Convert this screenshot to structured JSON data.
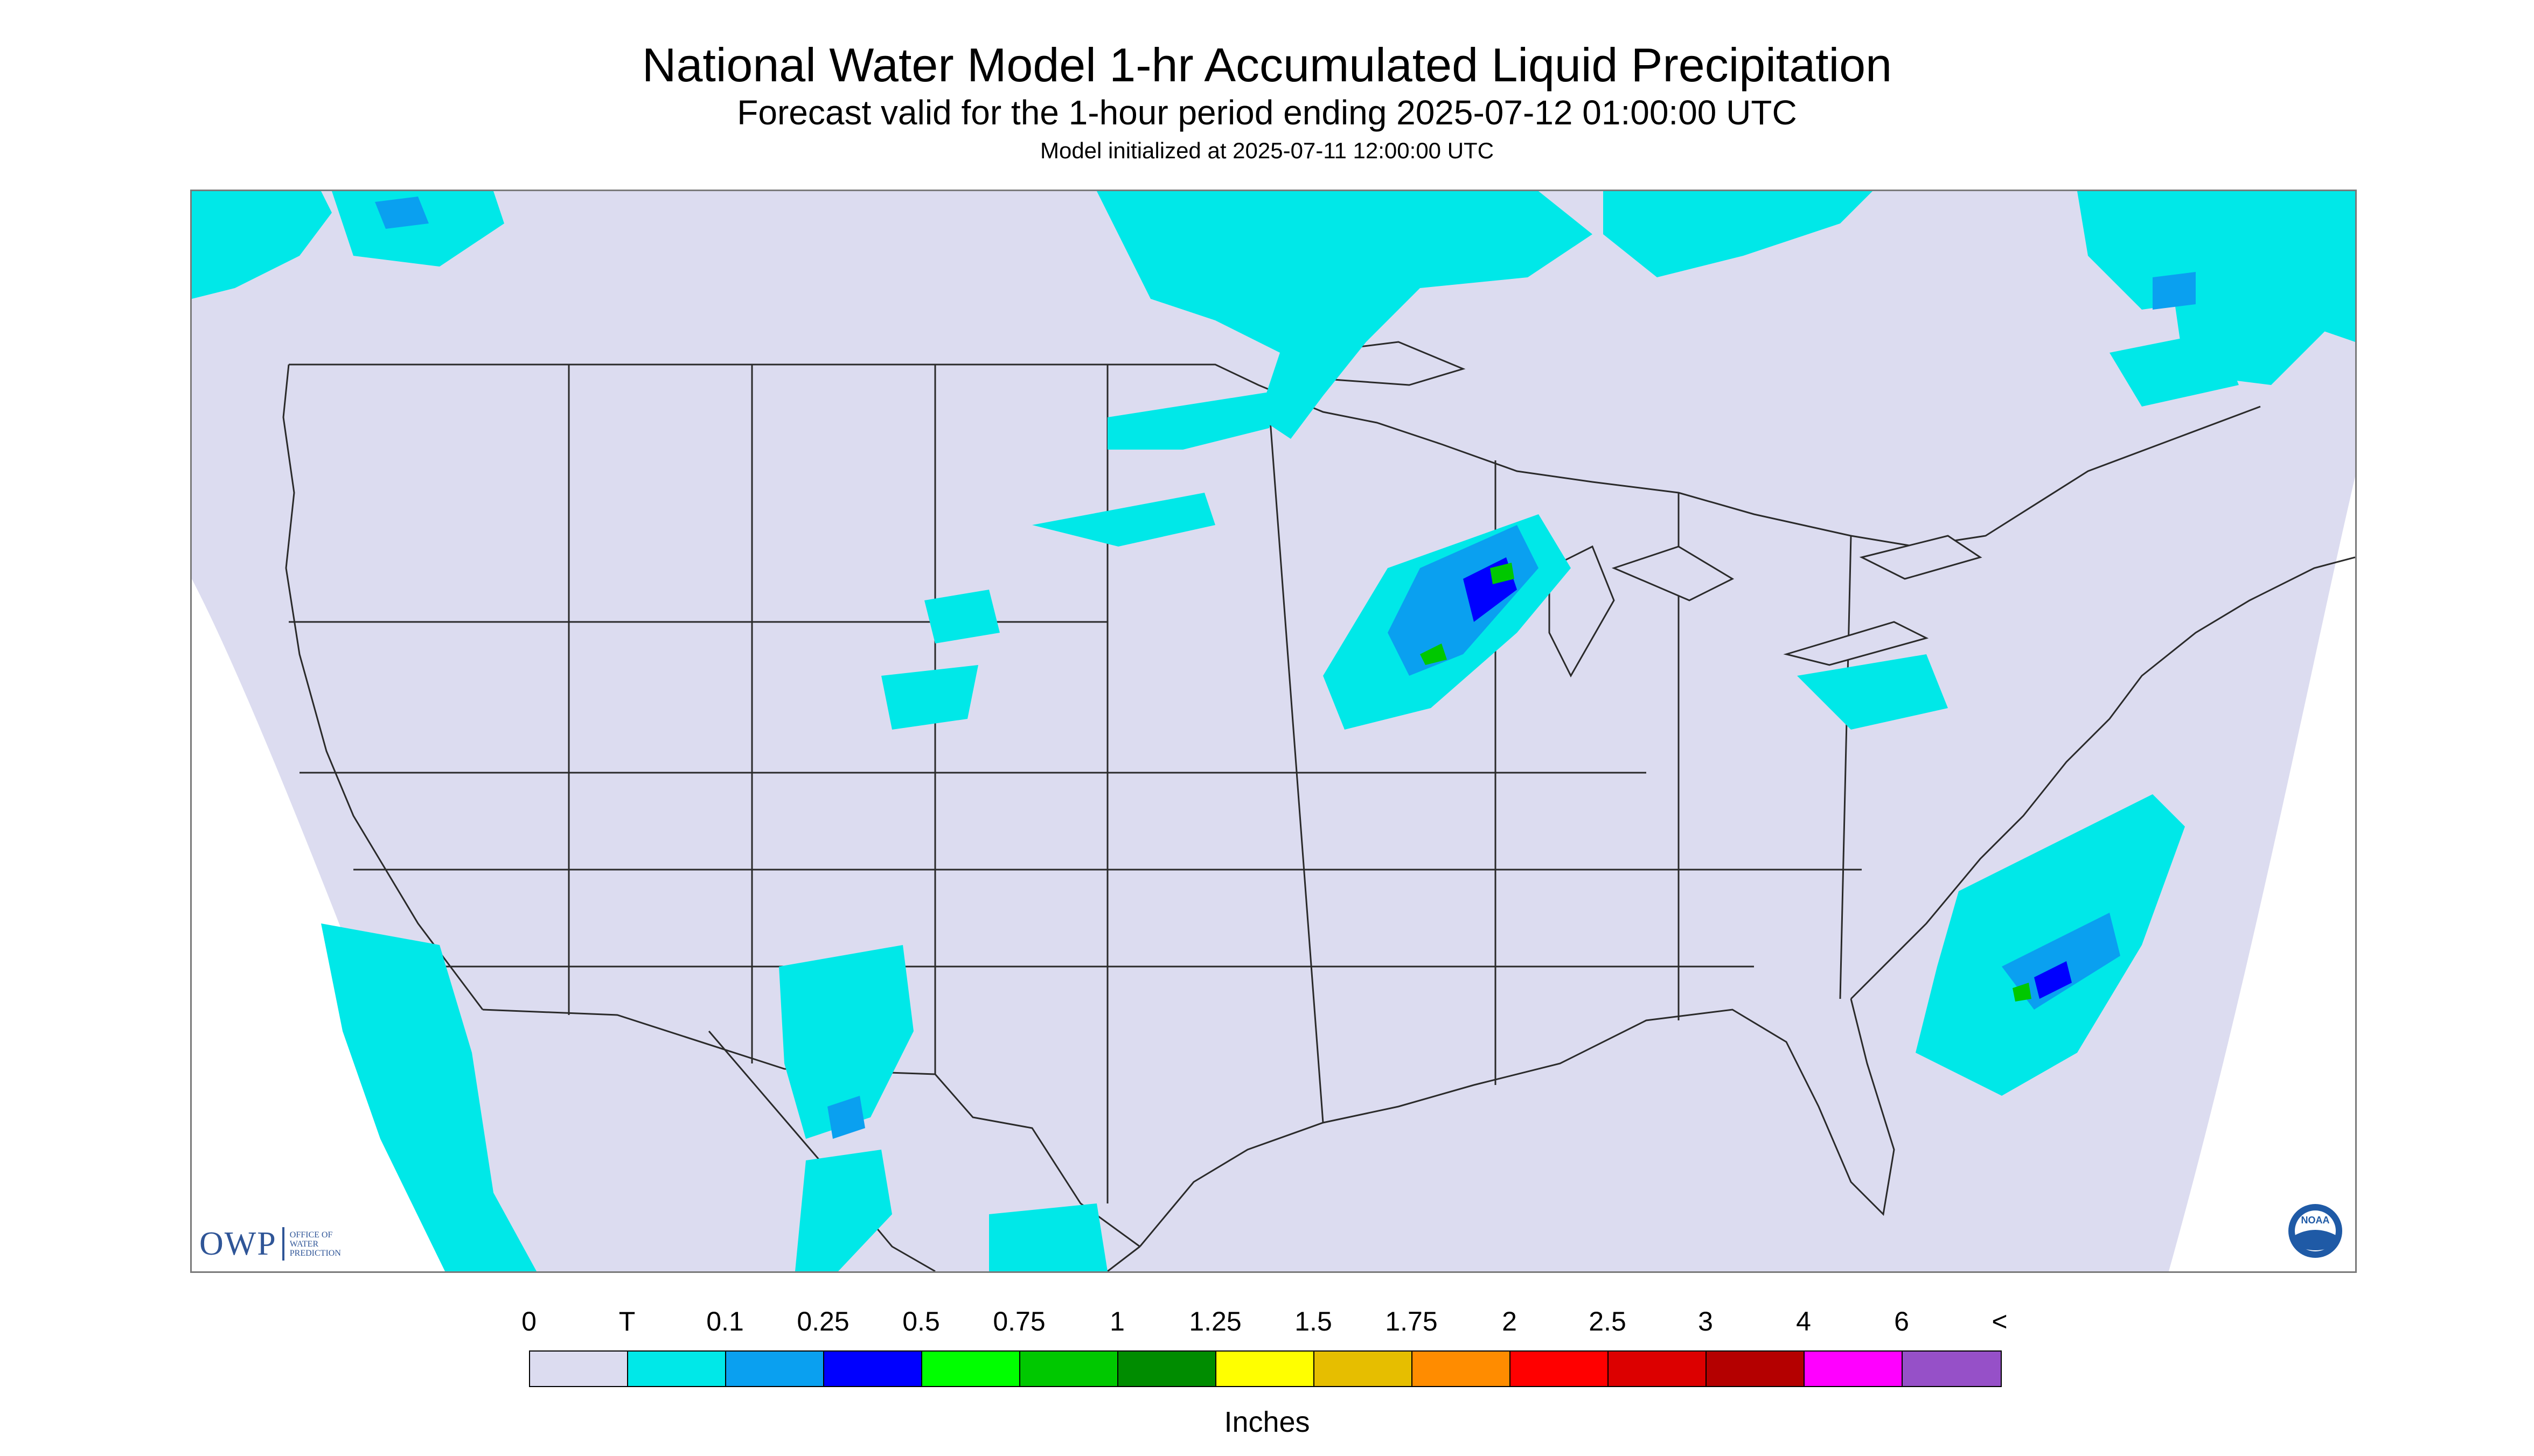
{
  "title": "National Water Model 1-hr Accumulated Liquid Precipitation",
  "subtitle": "Forecast valid for the 1-hour period ending 2025-07-12 01:00:00 UTC",
  "init_line": "Model initialized at 2025-07-11 12:00:00 UTC",
  "logos": {
    "owp_text": "OWP",
    "owp_sub": [
      "OFFICE OF",
      "WATER",
      "PREDICTION"
    ],
    "noaa_text": "NOAA"
  },
  "legend": {
    "units": "Inches",
    "ticks": [
      "0",
      "T",
      "0.1",
      "0.25",
      "0.5",
      "0.75",
      "1",
      "1.25",
      "1.5",
      "1.75",
      "2",
      "2.5",
      "3",
      "4",
      "6",
      "<"
    ],
    "colors": [
      "#dcdcf0",
      "#00e8e8",
      "#0aa0f0",
      "#0000ff",
      "#00ff00",
      "#00c800",
      "#008c00",
      "#ffff00",
      "#e6be00",
      "#ff8c00",
      "#ff0000",
      "#dc0000",
      "#b40000",
      "#ff00ff",
      "#9650c8"
    ]
  },
  "map": {
    "background": "#dcdcf0",
    "outside": "#ffffff",
    "boundary_color": "#2a2a2a",
    "precip_light": "#00e8e8",
    "precip_medium": "#0aa0f0",
    "precip_heavy": "#0000ff",
    "precip_green": "#00c800"
  }
}
